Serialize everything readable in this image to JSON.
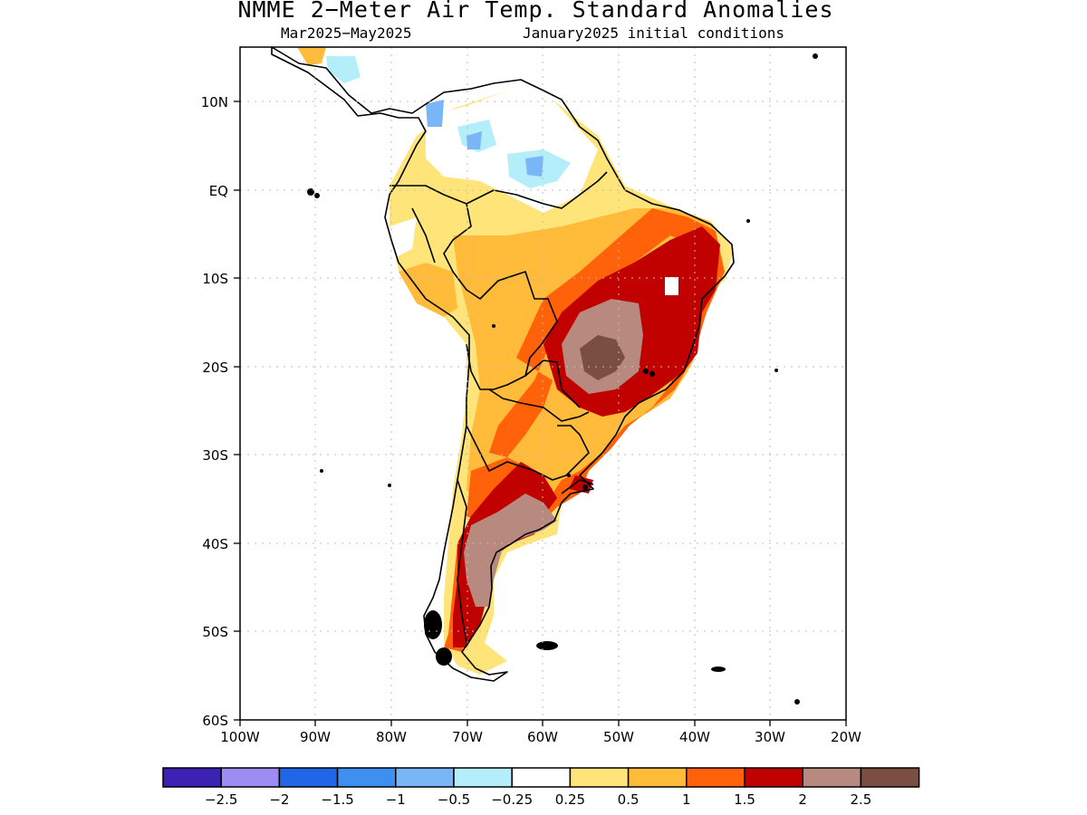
{
  "title": "NMME 2−Meter Air Temp. Standard Anomalies",
  "subtitle_period": "Mar2025−May2025",
  "subtitle_ic": "January2025 initial conditions",
  "lat_labels": [
    "10N",
    "EQ",
    "10S",
    "20S",
    "30S",
    "40S",
    "50S",
    "60S"
  ],
  "lon_labels": [
    "100W",
    "90W",
    "80W",
    "70W",
    "60W",
    "50W",
    "40W",
    "30W",
    "20W"
  ],
  "colorbar": {
    "colors": [
      "#3b22b5",
      "#9d8cf4",
      "#2166e6",
      "#3d90f0",
      "#78b6f7",
      "#b3eefa",
      "#ffffff",
      "#ffe47a",
      "#ffbb39",
      "#ff6208",
      "#c10000",
      "#b88a7f",
      "#7a4e40"
    ],
    "labels": [
      "−2.5",
      "−2",
      "−1.5",
      "−1",
      "−0.5",
      "−0.25",
      "0.25",
      "0.5",
      "1",
      "1.5",
      "2",
      "2.5"
    ]
  }
}
